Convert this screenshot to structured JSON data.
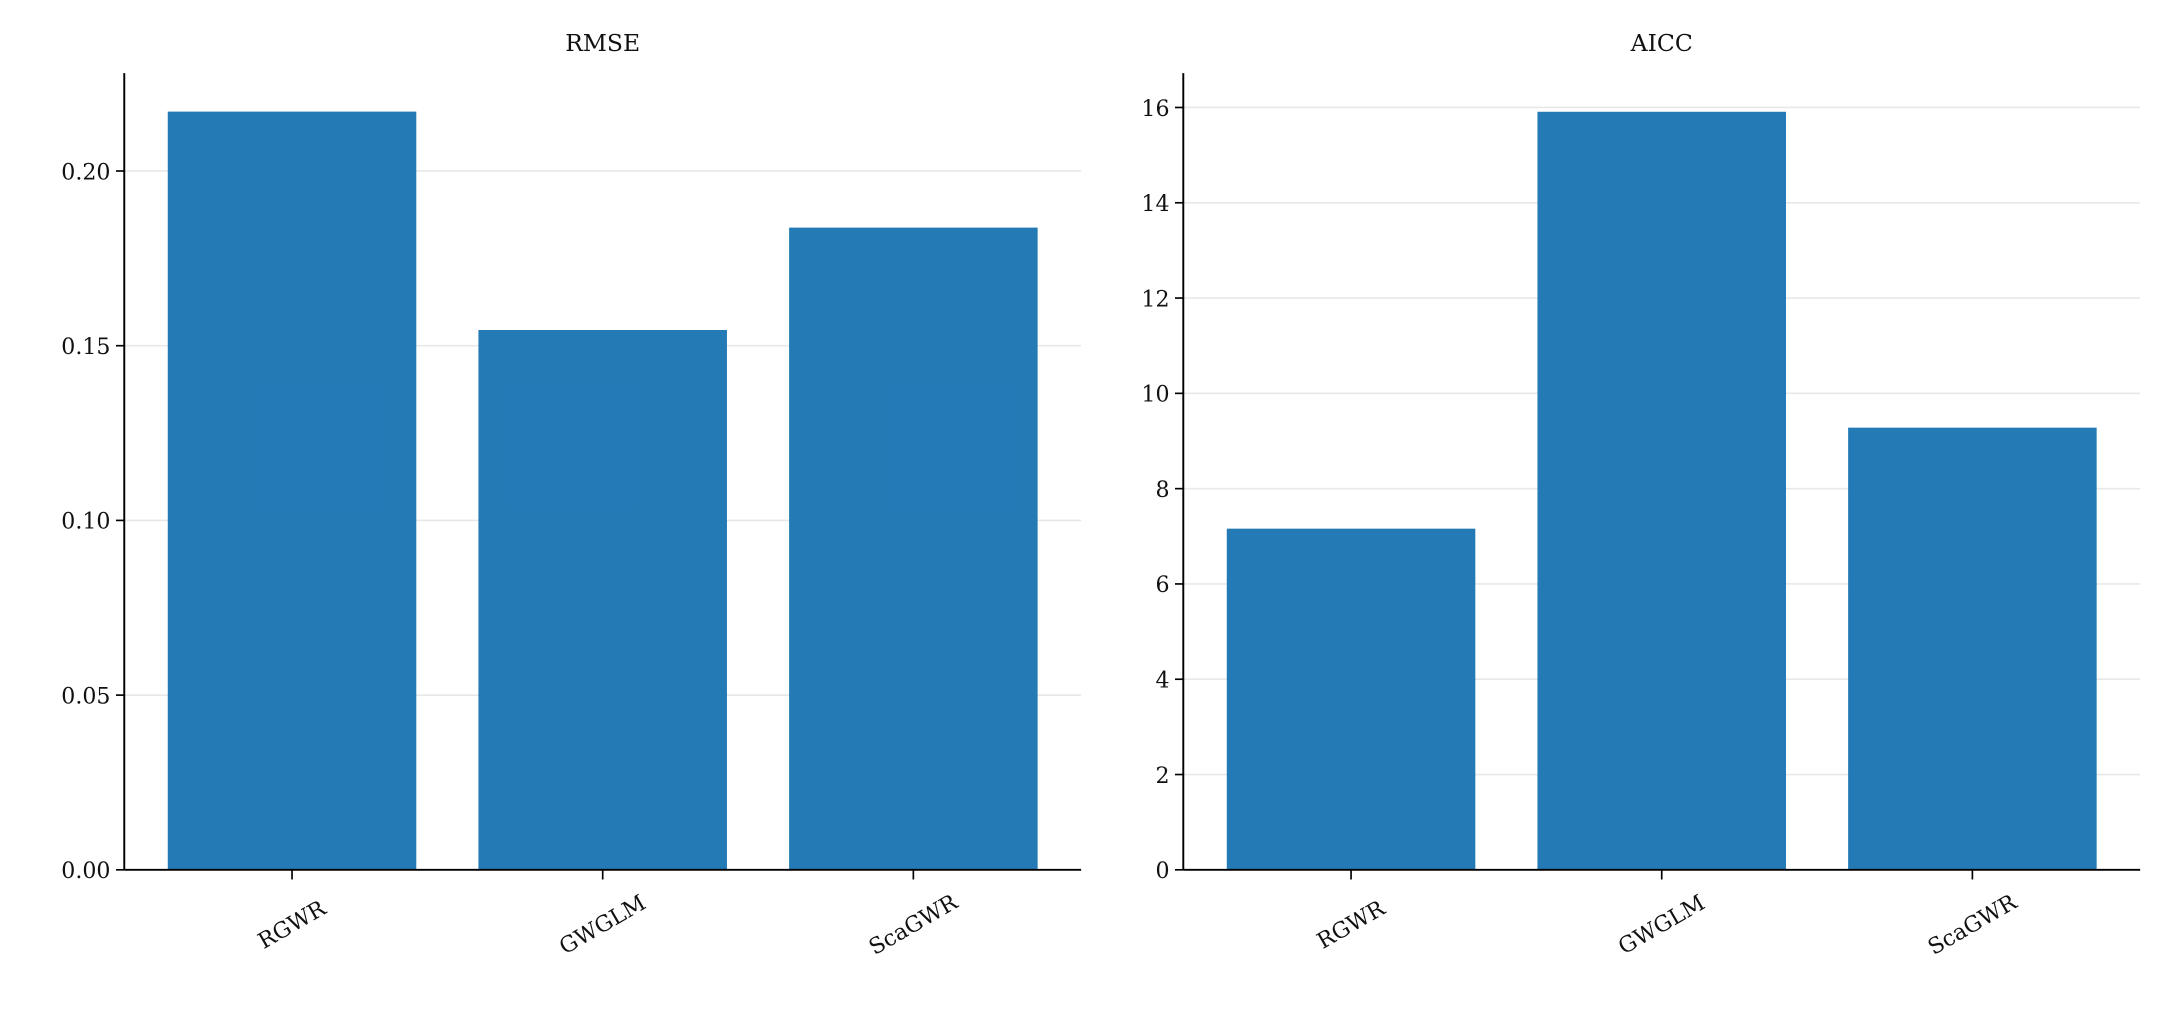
{
  "chart_data": [
    {
      "type": "bar",
      "title": "RMSE",
      "categories": [
        "RGWR",
        "GWGLM",
        "ScaGWR"
      ],
      "values": [
        0.217,
        0.1545,
        0.1838
      ],
      "color": "#1f77b4",
      "ylim": [
        0,
        0.228
      ],
      "yticks": [
        {
          "value": 0,
          "label": "0.00"
        },
        {
          "value": 0.05,
          "label": "0.05"
        },
        {
          "value": 0.1,
          "label": "0.10"
        },
        {
          "value": 0.15,
          "label": "0.15"
        },
        {
          "value": 0.2,
          "label": "0.20"
        }
      ],
      "grid": true
    },
    {
      "type": "bar",
      "title": "AICC",
      "categories": [
        "RGWR",
        "GWGLM",
        "ScaGWR"
      ],
      "values": [
        7.16,
        15.91,
        9.28
      ],
      "color": "#1f77b4",
      "ylim": [
        0,
        16.72
      ],
      "yticks": [
        0,
        2,
        4,
        6,
        8,
        10,
        12,
        14,
        16
      ],
      "grid": true
    }
  ]
}
